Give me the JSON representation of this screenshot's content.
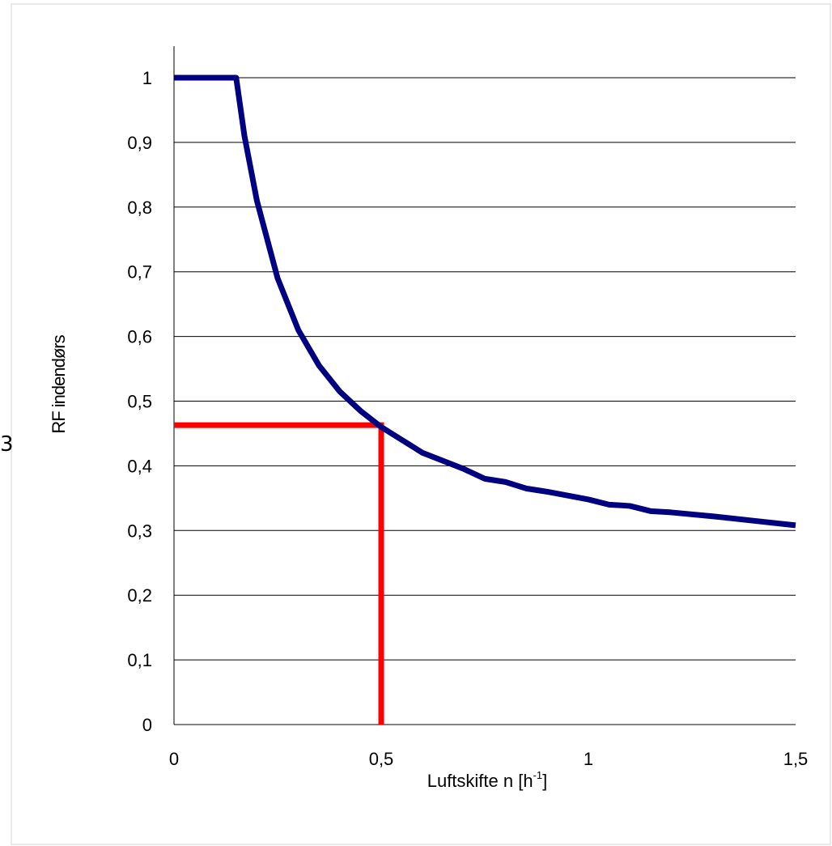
{
  "chart_data": {
    "type": "line",
    "title": "",
    "xlabel_main": "Luftskifte n [h",
    "xlabel_sup": "-1",
    "xlabel_end": "]",
    "ylabel": "RF indendørs",
    "xlim": [
      0,
      1.5
    ],
    "ylim": [
      0,
      1
    ],
    "x_ticks": [
      "0",
      "0,5",
      "1",
      "1,5"
    ],
    "y_ticks": [
      "0",
      "0,1",
      "0,2",
      "0,3",
      "0,4",
      "0,5",
      "0,6",
      "0,7",
      "0,8",
      "0,9",
      "1"
    ],
    "grid": "horizontal",
    "legend": "none",
    "series": [
      {
        "color": "#000080",
        "x": [
          0,
          0.05,
          0.1,
          0.15,
          0.17,
          0.2,
          0.25,
          0.3,
          0.35,
          0.4,
          0.45,
          0.5,
          0.55,
          0.6,
          0.7,
          0.75,
          0.8,
          0.85,
          0.9,
          1.0,
          1.05,
          1.1,
          1.15,
          1.2,
          1.3,
          1.4,
          1.5
        ],
        "y": [
          1,
          1,
          1,
          1,
          0.91,
          0.81,
          0.69,
          0.61,
          0.555,
          0.515,
          0.485,
          0.46,
          0.44,
          0.42,
          0.395,
          0.38,
          0.375,
          0.365,
          0.36,
          0.348,
          0.34,
          0.338,
          0.33,
          0.328,
          0.322,
          0.315,
          0.308
        ]
      }
    ],
    "reference_lines": {
      "color": "#ff0000",
      "x": 0.5,
      "y": 0.463
    },
    "side_text": "3"
  }
}
